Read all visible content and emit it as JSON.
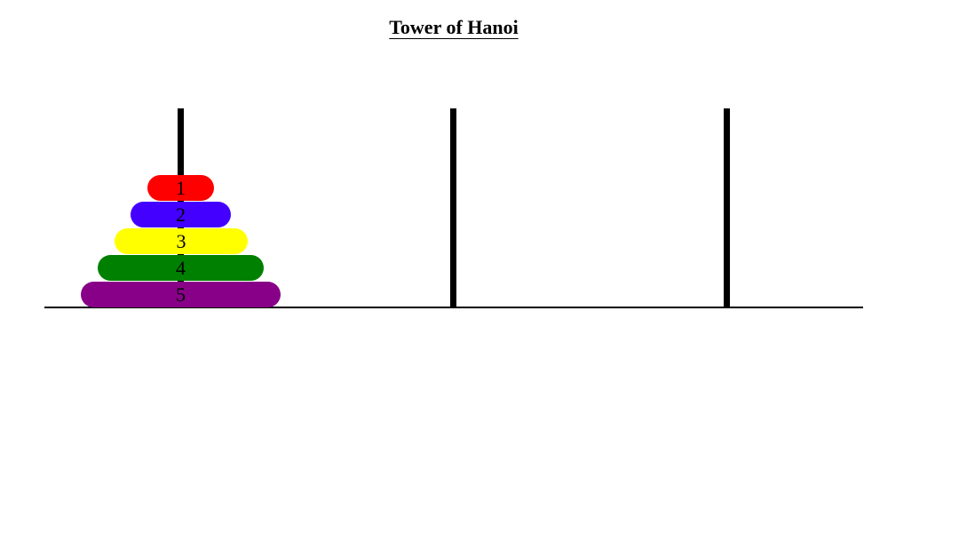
{
  "title": "Tower of Hanoi",
  "rods": [
    {
      "name": "rod-1",
      "disks": [
        1,
        2,
        3,
        4,
        5
      ]
    },
    {
      "name": "rod-2",
      "disks": []
    },
    {
      "name": "rod-3",
      "disks": []
    }
  ],
  "disks": [
    {
      "label": "1",
      "size": 1,
      "color": "#ff0000"
    },
    {
      "label": "2",
      "size": 2,
      "color": "#4400ff"
    },
    {
      "label": "3",
      "size": 3,
      "color": "#ffff00"
    },
    {
      "label": "4",
      "size": 4,
      "color": "#008000"
    },
    {
      "label": "5",
      "size": 5,
      "color": "#880088"
    }
  ]
}
